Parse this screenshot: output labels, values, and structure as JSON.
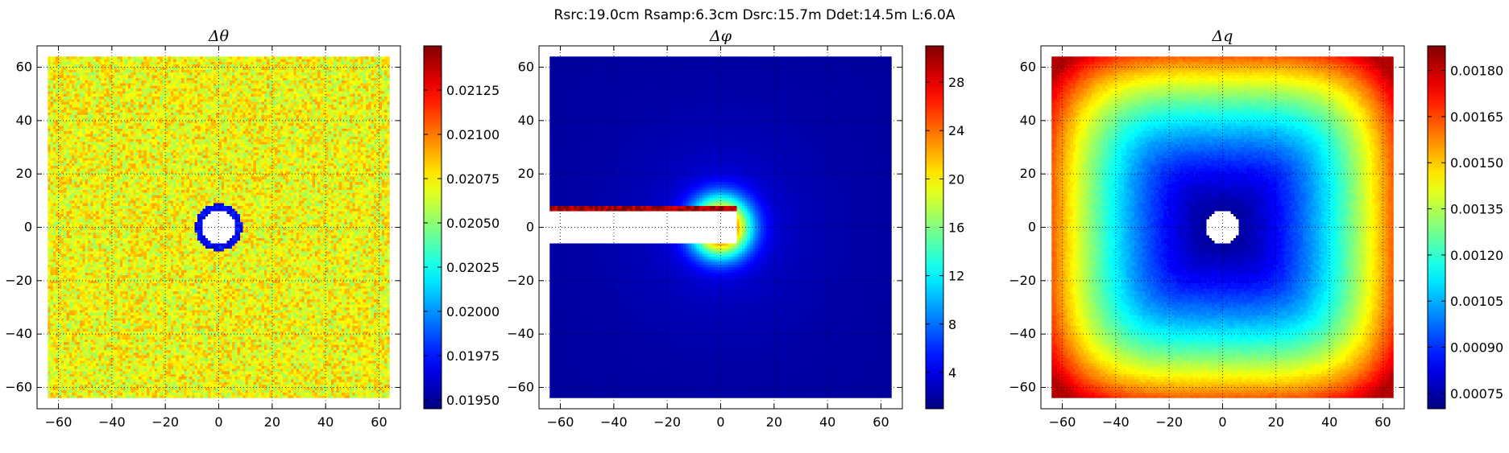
{
  "figure": {
    "suptitle": "Rsrc:19.0cm Rsamp:6.3cm Dsrc:15.7m Ddet:14.5m L:6.0A"
  },
  "chart_data": [
    {
      "type": "heatmap",
      "title": "Δθ",
      "xlabel": "",
      "ylabel": "",
      "xlim": [
        -68,
        68
      ],
      "ylim": [
        -68,
        68
      ],
      "extent": [
        -64,
        64,
        -64,
        64
      ],
      "xticks": [
        -60,
        -40,
        -20,
        0,
        20,
        40,
        60
      ],
      "yticks": [
        -60,
        -40,
        -20,
        0,
        20,
        40,
        60
      ],
      "grid": true,
      "colormap": "jet",
      "clim": [
        0.01945,
        0.0215
      ],
      "colorbar_ticks": [
        0.0195,
        0.01975,
        0.02,
        0.02025,
        0.0205,
        0.02075,
        0.021,
        0.02125
      ],
      "colorbar_labels": [
        "0.01950",
        "0.01975",
        "0.02000",
        "0.02025",
        "0.02050",
        "0.02075",
        "0.02100",
        "0.02125"
      ],
      "pattern": "noise",
      "base_value": 0.02072,
      "noise": 0.0002,
      "beamstop": {
        "cx": 0,
        "cy": 0,
        "r": 6.3
      },
      "notes": "near-uniform noisy field (~0.0207) with a blue ring (~0.0196) around a circular masked beamstop at the origin"
    },
    {
      "type": "heatmap",
      "title": "Δφ",
      "xlabel": "",
      "ylabel": "",
      "xlim": [
        -68,
        68
      ],
      "ylim": [
        -68,
        68
      ],
      "extent": [
        -64,
        64,
        -64,
        64
      ],
      "xticks": [
        -60,
        -40,
        -20,
        0,
        20,
        40,
        60
      ],
      "yticks": [
        -60,
        -40,
        -20,
        0,
        20,
        40,
        60
      ],
      "grid": true,
      "colormap": "jet",
      "clim": [
        1,
        31
      ],
      "colorbar_ticks": [
        4,
        8,
        12,
        16,
        20,
        24,
        28
      ],
      "colorbar_labels": [
        "4",
        "8",
        "12",
        "16",
        "20",
        "24",
        "28"
      ],
      "pattern": "radial-inverse",
      "beamstop_strip": {
        "x_from": -64,
        "x_to": 6.3,
        "y_from": -6,
        "y_to": 6.3
      },
      "edge_high_value": 30,
      "notes": "low background (~2) rising toward the origin; masked horizontal strip from left edge to the beamstop, red edge along its top"
    },
    {
      "type": "heatmap",
      "title": "Δq",
      "xlabel": "",
      "ylabel": "",
      "xlim": [
        -68,
        68
      ],
      "ylim": [
        -68,
        68
      ],
      "extent": [
        -64,
        64,
        -64,
        64
      ],
      "xticks": [
        -60,
        -40,
        -20,
        0,
        20,
        40,
        60
      ],
      "yticks": [
        -60,
        -40,
        -20,
        0,
        20,
        40,
        60
      ],
      "grid": true,
      "colormap": "jet",
      "clim": [
        0.0007,
        0.00188
      ],
      "colorbar_ticks": [
        0.00075,
        0.0009,
        0.00105,
        0.0012,
        0.00135,
        0.0015,
        0.00165,
        0.0018
      ],
      "colorbar_labels": [
        "0.00075",
        "0.00090",
        "0.00105",
        "0.00120",
        "0.00135",
        "0.00150",
        "0.00165",
        "0.00180"
      ],
      "pattern": "radial-increase",
      "center_value": 0.00072,
      "corner_value": 0.00182,
      "beamstop": {
        "cx": 0,
        "cy": 0,
        "r": 6.3
      },
      "notes": "minimum near the center rising toward the corners; circular beamstop masked at the origin"
    }
  ]
}
